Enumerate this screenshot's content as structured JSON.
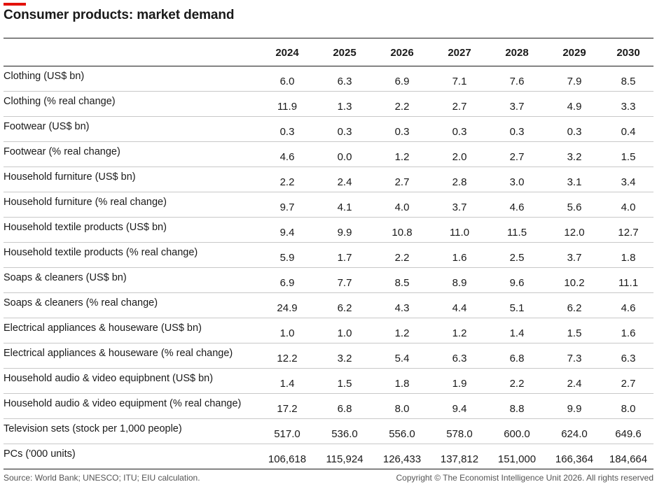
{
  "accent_color": "#e3120b",
  "chart_data": {
    "type": "table",
    "title": "Consumer products: market demand",
    "columns": [
      "2024",
      "2025",
      "2026",
      "2027",
      "2028",
      "2029",
      "2030"
    ],
    "rows": [
      {
        "label": "Clothing (US$ bn)",
        "values": [
          "6.0",
          "6.3",
          "6.9",
          "7.1",
          "7.6",
          "7.9",
          "8.5"
        ]
      },
      {
        "label": "Clothing (% real change)",
        "values": [
          "11.9",
          "1.3",
          "2.2",
          "2.7",
          "3.7",
          "4.9",
          "3.3"
        ]
      },
      {
        "label": "Footwear (US$ bn)",
        "values": [
          "0.3",
          "0.3",
          "0.3",
          "0.3",
          "0.3",
          "0.3",
          "0.4"
        ]
      },
      {
        "label": "Footwear (% real change)",
        "values": [
          "4.6",
          "0.0",
          "1.2",
          "2.0",
          "2.7",
          "3.2",
          "1.5"
        ]
      },
      {
        "label": "Household furniture (US$ bn)",
        "values": [
          "2.2",
          "2.4",
          "2.7",
          "2.8",
          "3.0",
          "3.1",
          "3.4"
        ]
      },
      {
        "label": "Household furniture (% real change)",
        "values": [
          "9.7",
          "4.1",
          "4.0",
          "3.7",
          "4.6",
          "5.6",
          "4.0"
        ]
      },
      {
        "label": "Household textile products (US$ bn)",
        "values": [
          "9.4",
          "9.9",
          "10.8",
          "11.0",
          "11.5",
          "12.0",
          "12.7"
        ]
      },
      {
        "label": "Household textile products (% real change)",
        "values": [
          "5.9",
          "1.7",
          "2.2",
          "1.6",
          "2.5",
          "3.7",
          "1.8"
        ]
      },
      {
        "label": "Soaps & cleaners (US$ bn)",
        "values": [
          "6.9",
          "7.7",
          "8.5",
          "8.9",
          "9.6",
          "10.2",
          "11.1"
        ]
      },
      {
        "label": "Soaps & cleaners (% real change)",
        "values": [
          "24.9",
          "6.2",
          "4.3",
          "4.4",
          "5.1",
          "6.2",
          "4.6"
        ]
      },
      {
        "label": "Electrical appliances & houseware (US$ bn)",
        "values": [
          "1.0",
          "1.0",
          "1.2",
          "1.2",
          "1.4",
          "1.5",
          "1.6"
        ]
      },
      {
        "label": "Electrical appliances & houseware (% real change)",
        "values": [
          "12.2",
          "3.2",
          "5.4",
          "6.3",
          "6.8",
          "7.3",
          "6.3"
        ]
      },
      {
        "label": "Household audio & video equipbnent (US$ bn)",
        "values": [
          "1.4",
          "1.5",
          "1.8",
          "1.9",
          "2.2",
          "2.4",
          "2.7"
        ]
      },
      {
        "label": "Household audio & video equipment (% real change)",
        "values": [
          "17.2",
          "6.8",
          "8.0",
          "9.4",
          "8.8",
          "9.9",
          "8.0"
        ]
      },
      {
        "label": "Television sets (stock per 1,000 people)",
        "values": [
          "517.0",
          "536.0",
          "556.0",
          "578.0",
          "600.0",
          "624.0",
          "649.6"
        ]
      },
      {
        "label": "PCs ('000 units)",
        "values": [
          "106,618",
          "115,924",
          "126,433",
          "137,812",
          "151,000",
          "166,364",
          "184,664"
        ]
      }
    ]
  },
  "footer": {
    "source": "Source: World Bank; UNESCO; ITU; EIU calculation.",
    "copyright": "Copyright © The Economist Intelligence Unit 2026. All rights reserved"
  }
}
